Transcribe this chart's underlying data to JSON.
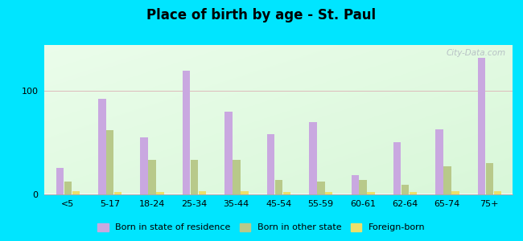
{
  "title": "Place of birth by age - St. Paul",
  "categories": [
    "<5",
    "5-17",
    "18-24",
    "25-34",
    "35-44",
    "45-54",
    "55-59",
    "60-61",
    "62-64",
    "65-74",
    "75+"
  ],
  "born_in_state": [
    25,
    92,
    55,
    120,
    80,
    58,
    70,
    18,
    50,
    63,
    132
  ],
  "born_other_state": [
    12,
    62,
    33,
    33,
    33,
    14,
    12,
    14,
    9,
    27,
    30
  ],
  "foreign_born": [
    3,
    2,
    2,
    3,
    3,
    2,
    2,
    2,
    2,
    3,
    3
  ],
  "color_state": "#c9a8e0",
  "color_other": "#b8c98a",
  "color_foreign": "#ede06a",
  "ylim": [
    0,
    145
  ],
  "yticks": [
    0,
    100
  ],
  "outer_bg": "#00e5ff",
  "plot_bg_left": "#c8e8c0",
  "plot_bg_right": "#f0fff0",
  "watermark": "City-Data.com",
  "legend_labels": [
    "Born in state of residence",
    "Born in other state",
    "Foreign-born"
  ]
}
